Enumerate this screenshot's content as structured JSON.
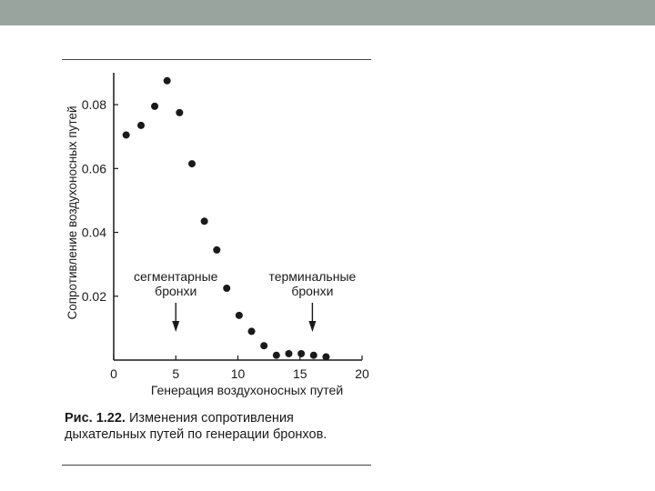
{
  "chart_data": {
    "type": "scatter",
    "title": "",
    "xlabel": "Генерация воздухоносных путей",
    "ylabel": "Сопротивление воздухоносных путей",
    "xlim": [
      0,
      20
    ],
    "ylim": [
      0,
      0.09
    ],
    "xticks": [
      "0",
      "5",
      "10",
      "15",
      "20"
    ],
    "yticks": [
      "0.02",
      "0.04",
      "0.06",
      "0.08"
    ],
    "grid": false,
    "series": [
      {
        "x": [
          1,
          2.2,
          3.3,
          4.3,
          5.3,
          6.3,
          7.3,
          8.3,
          9.1,
          10.1,
          11.1,
          12.1,
          13.1,
          14.1,
          15.1,
          16.1,
          17.1
        ],
        "y": [
          0.0705,
          0.0735,
          0.0795,
          0.0875,
          0.0775,
          0.0615,
          0.0435,
          0.0345,
          0.0225,
          0.014,
          0.009,
          0.0045,
          0.0015,
          0.002,
          0.002,
          0.0015,
          0.001
        ]
      }
    ],
    "annotations": [
      {
        "text": [
          "сегментарные",
          "бронхи"
        ],
        "x": 5
      },
      {
        "text": [
          "терминальные",
          "бронхи"
        ],
        "x": 16
      }
    ]
  },
  "caption": {
    "label": "Рис. 1.22.",
    "text": "Изменения сопротивления дыхательных путей по генерации бронхов."
  },
  "colors": {
    "header_bar": "#9aa49e",
    "ink": "#1a1a1a"
  }
}
